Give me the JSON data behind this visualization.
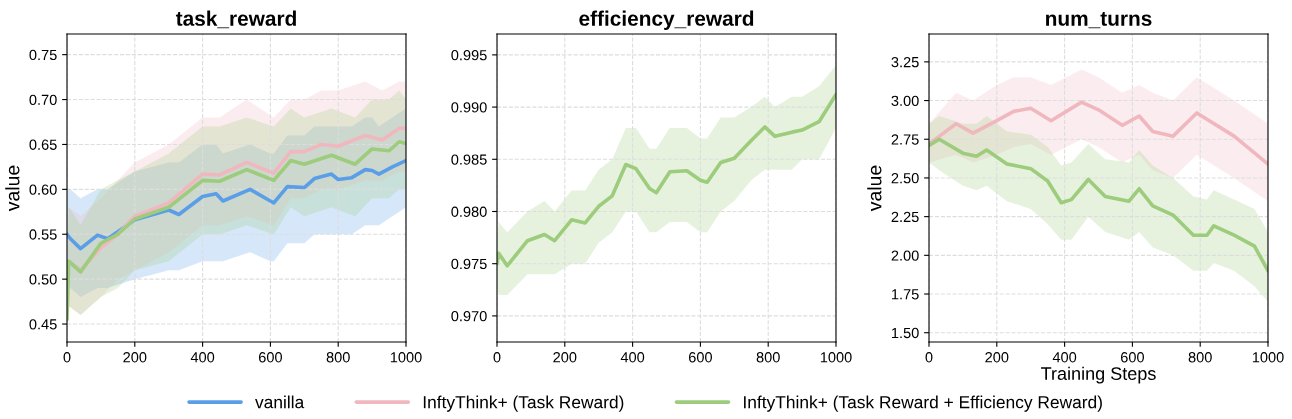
{
  "chart_data": [
    {
      "type": "line",
      "title": "task_reward",
      "ylabel": "value",
      "xlim": [
        0,
        1000
      ],
      "xticks": [
        0,
        200,
        400,
        600,
        800,
        1000
      ],
      "ylim": [
        0.43,
        0.773
      ],
      "yticks": [
        0.45,
        {
          "value": 0.5,
          "label": "0.50"
        },
        0.55,
        {
          "value": 0.6,
          "label": "0.60"
        },
        0.65,
        {
          "value": 0.7,
          "label": "0.70"
        },
        0.75
      ],
      "grid": true,
      "legend": "bottom",
      "series": [
        {
          "name": "vanilla",
          "color": "#5b9ee8",
          "x": [
            0,
            10,
            40,
            90,
            120,
            200,
            300,
            330,
            400,
            440,
            460,
            540,
            600,
            610,
            650,
            700,
            730,
            780,
            800,
            840,
            880,
            900,
            920,
            960,
            1000
          ],
          "values": [
            0.55,
            0.545,
            0.534,
            0.549,
            0.545,
            0.566,
            0.577,
            0.572,
            0.592,
            0.595,
            0.587,
            0.6,
            0.587,
            0.585,
            0.603,
            0.602,
            0.612,
            0.617,
            0.611,
            0.613,
            0.622,
            0.621,
            0.617,
            0.625,
            0.632
          ],
          "lower": [
            0.5,
            0.49,
            0.48,
            0.49,
            0.49,
            0.5,
            0.51,
            0.51,
            0.52,
            0.52,
            0.52,
            0.53,
            0.52,
            0.52,
            0.54,
            0.54,
            0.55,
            0.55,
            0.55,
            0.55,
            0.56,
            0.56,
            0.56,
            0.57,
            0.58
          ],
          "upper": [
            0.6,
            0.6,
            0.59,
            0.6,
            0.6,
            0.62,
            0.63,
            0.63,
            0.65,
            0.65,
            0.64,
            0.65,
            0.64,
            0.64,
            0.66,
            0.66,
            0.67,
            0.67,
            0.67,
            0.67,
            0.68,
            0.68,
            0.67,
            0.68,
            0.69
          ]
        },
        {
          "name": "InftyThink+ (Task Reward)",
          "color": "#f0b8be",
          "x": [
            0,
            5,
            40,
            100,
            150,
            200,
            300,
            400,
            450,
            530,
            610,
            660,
            700,
            750,
            800,
            880,
            930,
            980,
            1000
          ],
          "values": [
            null,
            0.52,
            0.51,
            0.535,
            0.55,
            0.57,
            0.585,
            0.617,
            0.616,
            0.63,
            0.618,
            0.642,
            0.642,
            0.65,
            0.648,
            0.66,
            0.655,
            0.668,
            0.668
          ],
          "lower": [
            0.45,
            0.47,
            0.46,
            0.48,
            0.5,
            0.51,
            0.53,
            0.56,
            0.56,
            0.57,
            0.56,
            0.59,
            0.59,
            0.6,
            0.6,
            0.61,
            0.61,
            0.62,
            0.62
          ],
          "upper": [
            0.5,
            0.58,
            0.57,
            0.59,
            0.61,
            0.63,
            0.65,
            0.68,
            0.68,
            0.7,
            0.68,
            0.7,
            0.7,
            0.71,
            0.71,
            0.72,
            0.71,
            0.72,
            0.72
          ]
        },
        {
          "name": "InftyThink+ (Task Reward + Efficiency Reward)",
          "color": "#9ccc7c",
          "x": [
            0,
            5,
            40,
            100,
            150,
            200,
            300,
            400,
            450,
            530,
            610,
            660,
            700,
            780,
            850,
            900,
            950,
            980,
            1000
          ],
          "values": [
            0.455,
            0.52,
            0.508,
            0.54,
            0.55,
            0.567,
            0.58,
            0.61,
            0.609,
            0.622,
            0.61,
            0.632,
            0.628,
            0.638,
            0.628,
            0.645,
            0.643,
            0.653,
            0.651
          ],
          "lower": [
            0.45,
            0.47,
            0.46,
            0.48,
            0.49,
            0.51,
            0.52,
            0.55,
            0.55,
            0.56,
            0.55,
            0.58,
            0.57,
            0.58,
            0.57,
            0.59,
            0.59,
            0.6,
            0.6
          ],
          "upper": [
            0.5,
            0.58,
            0.56,
            0.6,
            0.61,
            0.62,
            0.64,
            0.67,
            0.67,
            0.68,
            0.67,
            0.69,
            0.68,
            0.69,
            0.68,
            0.7,
            0.7,
            0.71,
            0.7
          ]
        }
      ]
    },
    {
      "type": "line",
      "title": "efficiency_reward",
      "xlim": [
        0,
        1000
      ],
      "xticks": [
        0,
        200,
        400,
        600,
        800,
        1000
      ],
      "ylim": [
        0.9675,
        0.997
      ],
      "yticks": [
        {
          "value": 0.97,
          "label": "0.970"
        },
        0.975,
        {
          "value": 0.98,
          "label": "0.980"
        },
        0.985,
        {
          "value": 0.99,
          "label": "0.990"
        },
        0.995
      ],
      "grid": true,
      "series": [
        {
          "color": "#9ccc7c",
          "x": [
            0,
            5,
            30,
            90,
            140,
            170,
            220,
            260,
            300,
            340,
            380,
            410,
            450,
            470,
            510,
            560,
            600,
            620,
            660,
            700,
            750,
            790,
            820,
            870,
            900,
            950,
            1000
          ],
          "values": [
            0.975,
            0.976,
            0.9748,
            0.9772,
            0.9778,
            0.9772,
            0.9792,
            0.9789,
            0.9805,
            0.9815,
            0.9845,
            0.9841,
            0.9822,
            0.9818,
            0.9838,
            0.9839,
            0.983,
            0.9828,
            0.9847,
            0.9851,
            0.9868,
            0.9881,
            0.9872,
            0.9876,
            0.9878,
            0.9886,
            0.9912
          ],
          "lower": [
            0.973,
            0.972,
            0.972,
            0.974,
            0.974,
            0.974,
            0.975,
            0.975,
            0.977,
            0.978,
            0.98,
            0.98,
            0.978,
            0.978,
            0.979,
            0.979,
            0.978,
            0.978,
            0.98,
            0.981,
            0.983,
            0.984,
            0.984,
            0.984,
            0.985,
            0.985,
            0.988
          ],
          "upper": [
            0.977,
            0.979,
            0.978,
            0.98,
            0.981,
            0.98,
            0.982,
            0.982,
            0.984,
            0.985,
            0.988,
            0.988,
            0.986,
            0.986,
            0.988,
            0.988,
            0.987,
            0.987,
            0.989,
            0.989,
            0.99,
            0.991,
            0.99,
            0.991,
            0.991,
            0.992,
            0.994
          ]
        }
      ]
    },
    {
      "type": "line",
      "title": "num_turns",
      "xlabel": "Training Steps",
      "ylabel": "value",
      "xlim": [
        0,
        1000
      ],
      "xticks": [
        0,
        200,
        400,
        600,
        800,
        1000
      ],
      "ylim": [
        1.44,
        3.43
      ],
      "yticks": [
        {
          "value": 1.5,
          "label": "1.50"
        },
        1.75,
        {
          "value": 2.0,
          "label": "2.00"
        },
        2.25,
        {
          "value": 2.5,
          "label": "2.50"
        },
        2.75,
        {
          "value": 3.0,
          "label": "3.00"
        },
        3.25
      ],
      "grid": true,
      "series": [
        {
          "color": "#f0b8be",
          "x": [
            0,
            80,
            130,
            200,
            250,
            300,
            360,
            450,
            500,
            570,
            620,
            660,
            720,
            790,
            900,
            1000
          ],
          "values": [
            2.72,
            2.85,
            2.79,
            2.87,
            2.93,
            2.95,
            2.87,
            2.99,
            2.94,
            2.84,
            2.9,
            2.8,
            2.77,
            2.92,
            2.77,
            2.59
          ],
          "lower": [
            2.6,
            2.65,
            2.6,
            2.65,
            2.7,
            2.72,
            2.65,
            2.75,
            2.7,
            2.6,
            2.65,
            2.55,
            2.5,
            2.65,
            2.5,
            2.35
          ],
          "upper": [
            2.85,
            3.05,
            3.0,
            3.1,
            3.15,
            3.15,
            3.1,
            3.2,
            3.15,
            3.05,
            3.1,
            3.05,
            3.0,
            3.15,
            3.0,
            2.85
          ]
        },
        {
          "color": "#9ccc7c",
          "x": [
            0,
            30,
            100,
            140,
            170,
            230,
            300,
            350,
            390,
            420,
            470,
            520,
            590,
            620,
            660,
            720,
            780,
            820,
            840,
            900,
            960,
            1000
          ],
          "values": [
            2.71,
            2.75,
            2.66,
            2.64,
            2.68,
            2.59,
            2.56,
            2.48,
            2.34,
            2.36,
            2.49,
            2.38,
            2.35,
            2.43,
            2.32,
            2.26,
            2.13,
            2.13,
            2.19,
            2.13,
            2.06,
            1.9
          ],
          "lower": [
            2.6,
            2.55,
            2.45,
            2.42,
            2.45,
            2.35,
            2.3,
            2.2,
            2.1,
            2.1,
            2.25,
            2.15,
            2.1,
            2.15,
            2.05,
            2.0,
            1.9,
            1.9,
            1.95,
            1.9,
            1.8,
            1.7
          ],
          "upper": [
            2.85,
            2.9,
            2.85,
            2.85,
            2.9,
            2.8,
            2.78,
            2.7,
            2.58,
            2.6,
            2.72,
            2.62,
            2.6,
            2.68,
            2.58,
            2.5,
            2.38,
            2.36,
            2.42,
            2.36,
            2.3,
            2.15
          ]
        }
      ]
    }
  ]
}
